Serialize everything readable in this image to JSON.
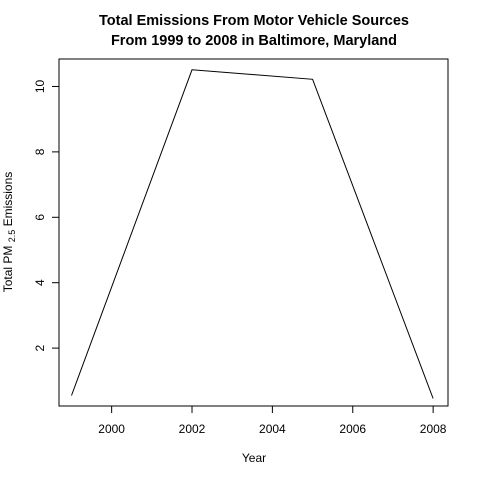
{
  "chart_data": {
    "type": "line",
    "title_lines": [
      "Total Emissions From Motor Vehicle Sources",
      "From 1999 to 2008 in Baltimore, Maryland"
    ],
    "xlabel": "Year",
    "ylabel_prefix": "Total PM",
    "ylabel_subscript": "2.5",
    "ylabel_suffix": " Emissions",
    "xlim": [
      1998.69,
      2008.37
    ],
    "ylim": [
      0.23,
      10.84
    ],
    "x_ticks": [
      2000,
      2002,
      2004,
      2006,
      2008
    ],
    "y_ticks": [
      2,
      4,
      6,
      8,
      10
    ],
    "grid": false,
    "legend": "none",
    "line_color": "#000000",
    "series": [
      {
        "x": [
          1999,
          2002,
          2005,
          2008
        ],
        "y": [
          0.55,
          10.51,
          10.22,
          0.46
        ]
      }
    ]
  }
}
